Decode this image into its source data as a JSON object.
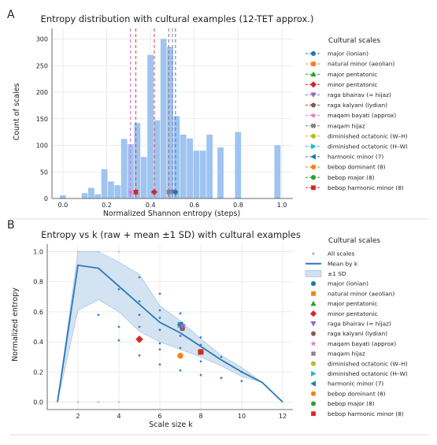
{
  "panel_labels": [
    "A",
    "B"
  ],
  "colors": {
    "hist": "#9ec4ef",
    "mean": "#2a78b8",
    "band": "#cfe0f1",
    "band_edge": "#8fb5d8",
    "raw": "#3c86c4",
    "grid": "#e6e6e6"
  },
  "chart_data": [
    {
      "type": "bar",
      "title": "Entropy distribution with cultural examples (12-TET approx.)",
      "xlabel": "Normalized Shannon entropy (steps)",
      "ylabel": "Count of scales",
      "xlim": [
        -0.05,
        1.05
      ],
      "ylim": [
        0,
        320
      ],
      "xticks": [
        0.0,
        0.2,
        0.4,
        0.6,
        0.8,
        1.0
      ],
      "xtick_labels": [
        "0.0",
        "0.2",
        "0.4",
        "0.6",
        "0.8",
        "1.0"
      ],
      "yticks": [
        0,
        50,
        100,
        150,
        200,
        250,
        300
      ],
      "bin_width": 0.029,
      "bins": [
        {
          "x": 0.0,
          "count": 6
        },
        {
          "x": 0.1,
          "count": 10
        },
        {
          "x": 0.13,
          "count": 20
        },
        {
          "x": 0.16,
          "count": 8
        },
        {
          "x": 0.19,
          "count": 55
        },
        {
          "x": 0.22,
          "count": 32
        },
        {
          "x": 0.25,
          "count": 25
        },
        {
          "x": 0.28,
          "count": 112
        },
        {
          "x": 0.31,
          "count": 102
        },
        {
          "x": 0.34,
          "count": 142
        },
        {
          "x": 0.37,
          "count": 78
        },
        {
          "x": 0.4,
          "count": 270
        },
        {
          "x": 0.43,
          "count": 147
        },
        {
          "x": 0.46,
          "count": 300
        },
        {
          "x": 0.49,
          "count": 285
        },
        {
          "x": 0.52,
          "count": 155
        },
        {
          "x": 0.55,
          "count": 120
        },
        {
          "x": 0.58,
          "count": 113
        },
        {
          "x": 0.61,
          "count": 90
        },
        {
          "x": 0.64,
          "count": 90
        },
        {
          "x": 0.67,
          "count": 120
        },
        {
          "x": 0.72,
          "count": 96
        },
        {
          "x": 0.8,
          "count": 125
        },
        {
          "x": 0.98,
          "count": 100
        }
      ],
      "vlines": [
        {
          "x": 0.308,
          "color": "#d268d6"
        },
        {
          "x": 0.333,
          "color": "#e23b3b"
        },
        {
          "x": 0.417,
          "color": "#e23b3b"
        },
        {
          "x": 0.483,
          "color": "#8c6b5a"
        },
        {
          "x": 0.5,
          "color": "#8e6fc9"
        },
        {
          "x": 0.514,
          "color": "#2a7fbf"
        }
      ],
      "markers": [
        {
          "x": 0.308,
          "color": "#e377c2",
          "shape": "star"
        },
        {
          "x": 0.333,
          "color": "#d62728",
          "shape": "square"
        },
        {
          "x": 0.417,
          "color": "#d62728",
          "shape": "diamond"
        },
        {
          "x": 0.483,
          "color": "#7f7f7f",
          "shape": "x"
        },
        {
          "x": 0.5,
          "color": "#9467bd",
          "shape": "triangle-down"
        },
        {
          "x": 0.514,
          "color": "#1f77b4",
          "shape": "circle"
        }
      ],
      "legend": {
        "title": "Cultural scales",
        "placement": "right, outside",
        "entries": [
          {
            "name": "major (ionian)",
            "color": "#1f77b4",
            "shape": "circle"
          },
          {
            "name": "natural minor (aeolian)",
            "color": "#ff7f0e",
            "shape": "square"
          },
          {
            "name": "major pentatonic",
            "color": "#2ca02c",
            "shape": "triangle-up"
          },
          {
            "name": "minor pentatonic",
            "color": "#d62728",
            "shape": "diamond"
          },
          {
            "name": "raga bhairav (≈ hijaz)",
            "color": "#9467bd",
            "shape": "triangle-down"
          },
          {
            "name": "raga kalyani (lydian)",
            "color": "#8c564b",
            "shape": "pentagon"
          },
          {
            "name": "maqam bayati (approx)",
            "color": "#e377c2",
            "shape": "star"
          },
          {
            "name": "maqam hijaz",
            "color": "#7f7f7f",
            "shape": "x"
          },
          {
            "name": "diminished octatonic (W–H)",
            "color": "#bcbd22",
            "shape": "circle"
          },
          {
            "name": "diminished octatonic (H–W)",
            "color": "#17becf",
            "shape": "triangle-right"
          },
          {
            "name": "harmonic minor (7)",
            "color": "#1f77b4",
            "shape": "triangle-left"
          },
          {
            "name": "bebop dominant (8)",
            "color": "#ff7f0e",
            "shape": "circle"
          },
          {
            "name": "bebop major (8)",
            "color": "#2ca02c",
            "shape": "circle"
          },
          {
            "name": "bebop harmonic minor (8)",
            "color": "#d62728",
            "shape": "square"
          }
        ]
      }
    },
    {
      "type": "line",
      "title": "Entropy vs k (raw + mean ±1 SD) with cultural examples",
      "xlabel": "Scale size k",
      "ylabel": "Normalized entropy",
      "xlim": [
        0.5,
        12.5
      ],
      "ylim": [
        -0.05,
        1.05
      ],
      "xticks": [
        2,
        4,
        6,
        8,
        10,
        12
      ],
      "yticks": [
        0.0,
        0.2,
        0.4,
        0.6,
        0.8,
        1.0
      ],
      "ytick_labels": [
        "0.0",
        "0.2",
        "0.4",
        "0.6",
        "0.8",
        "1.0"
      ],
      "mean": {
        "name": "Mean by k",
        "x": [
          1,
          2,
          3,
          4,
          5,
          6,
          7,
          8,
          9,
          10,
          11,
          12
        ],
        "y": [
          0.0,
          0.91,
          0.89,
          0.77,
          0.65,
          0.53,
          0.46,
          0.37,
          0.28,
          0.2,
          0.13,
          0.0
        ]
      },
      "sd": {
        "name": "±1 SD",
        "upper": [
          0.0,
          1.0,
          1.0,
          0.93,
          0.85,
          0.64,
          0.54,
          0.42,
          0.31,
          0.23,
          0.13,
          0.0
        ],
        "lower": [
          0.0,
          0.61,
          0.68,
          0.6,
          0.47,
          0.4,
          0.35,
          0.3,
          0.24,
          0.17,
          0.13,
          0.0
        ]
      },
      "raw": {
        "name": "All scales",
        "points": [
          [
            2,
            1.0
          ],
          [
            3,
            1.0
          ],
          [
            4,
            1.0
          ],
          [
            2,
            0.0
          ],
          [
            3,
            0.0
          ],
          [
            4,
            0.0
          ],
          [
            3,
            0.58
          ],
          [
            4,
            0.75
          ],
          [
            4,
            0.5
          ],
          [
            4,
            0.41
          ],
          [
            5,
            0.83
          ],
          [
            5,
            0.67
          ],
          [
            5,
            0.58
          ],
          [
            5,
            0.5
          ],
          [
            5,
            0.42
          ],
          [
            5,
            0.31
          ],
          [
            6,
            0.72
          ],
          [
            6,
            0.61
          ],
          [
            6,
            0.56
          ],
          [
            6,
            0.48
          ],
          [
            6,
            0.39
          ],
          [
            6,
            0.35
          ],
          [
            6,
            0.25
          ],
          [
            7,
            0.59
          ],
          [
            7,
            0.51
          ],
          [
            7,
            0.44
          ],
          [
            7,
            0.36
          ],
          [
            7,
            0.3
          ],
          [
            7,
            0.21
          ],
          [
            8,
            0.43
          ],
          [
            8,
            0.38
          ],
          [
            8,
            0.33
          ],
          [
            8,
            0.27
          ],
          [
            8,
            0.18
          ],
          [
            9,
            0.3
          ],
          [
            9,
            0.16
          ],
          [
            10,
            0.2
          ],
          [
            10,
            0.14
          ]
        ]
      },
      "cultural_points": [
        {
          "x": 5,
          "y": 0.417,
          "color": "#d62728",
          "shape": "diamond"
        },
        {
          "x": 7,
          "y": 0.514,
          "color": "#1f77b4",
          "shape": "circle"
        },
        {
          "x": 7,
          "y": 0.514,
          "color": "#17becf",
          "shape": "triangle-right"
        },
        {
          "x": 7,
          "y": 0.514,
          "color": "#1f77b4",
          "shape": "triangle-left"
        },
        {
          "x": 7.1,
          "y": 0.49,
          "color": "#8c564b",
          "shape": "pentagon"
        },
        {
          "x": 7.1,
          "y": 0.5,
          "color": "#9467bd",
          "shape": "triangle-down"
        },
        {
          "x": 7,
          "y": 0.308,
          "color": "#bcbd22",
          "shape": "circle"
        },
        {
          "x": 7,
          "y": 0.308,
          "color": "#e377c2",
          "shape": "star"
        },
        {
          "x": 7,
          "y": 0.308,
          "color": "#ff7f0e",
          "shape": "circle"
        },
        {
          "x": 8,
          "y": 0.333,
          "color": "#7f7f7f",
          "shape": "x"
        },
        {
          "x": 8,
          "y": 0.333,
          "color": "#ff7f0e",
          "shape": "circle"
        },
        {
          "x": 8,
          "y": 0.333,
          "color": "#2ca02c",
          "shape": "circle"
        },
        {
          "x": 8,
          "y": 0.333,
          "color": "#d62728",
          "shape": "square"
        }
      ],
      "legend": {
        "title": "Cultural scales",
        "placement": "right, outside",
        "entries": [
          {
            "name": "All scales",
            "color": "#aaaaaa",
            "shape": "dot"
          },
          {
            "name": "Mean by k",
            "color": "#2a78b8",
            "shape": "line"
          },
          {
            "name": "±1 SD",
            "color": "#cfe0f1",
            "shape": "patch"
          },
          {
            "name": "major (ionian)",
            "color": "#1f77b4",
            "shape": "circle"
          },
          {
            "name": "natural minor (aeolian)",
            "color": "#ff7f0e",
            "shape": "square"
          },
          {
            "name": "major pentatonic",
            "color": "#2ca02c",
            "shape": "triangle-up"
          },
          {
            "name": "minor pentatonic",
            "color": "#d62728",
            "shape": "diamond"
          },
          {
            "name": "raga bhairav (≈ hijaz)",
            "color": "#9467bd",
            "shape": "triangle-down"
          },
          {
            "name": "raga kalyani (lydian)",
            "color": "#8c564b",
            "shape": "pentagon"
          },
          {
            "name": "maqam bayati (approx)",
            "color": "#e377c2",
            "shape": "star"
          },
          {
            "name": "maqam hijaz",
            "color": "#7f7f7f",
            "shape": "x"
          },
          {
            "name": "diminished octatonic (W–H)",
            "color": "#bcbd22",
            "shape": "circle"
          },
          {
            "name": "diminished octatonic (H–W)",
            "color": "#17becf",
            "shape": "triangle-right"
          },
          {
            "name": "harmonic minor (7)",
            "color": "#1f77b4",
            "shape": "triangle-left"
          },
          {
            "name": "bebop dominant (8)",
            "color": "#ff7f0e",
            "shape": "circle"
          },
          {
            "name": "bebop major (8)",
            "color": "#2ca02c",
            "shape": "circle"
          },
          {
            "name": "bebop harmonic minor (8)",
            "color": "#d62728",
            "shape": "square"
          }
        ]
      }
    }
  ]
}
